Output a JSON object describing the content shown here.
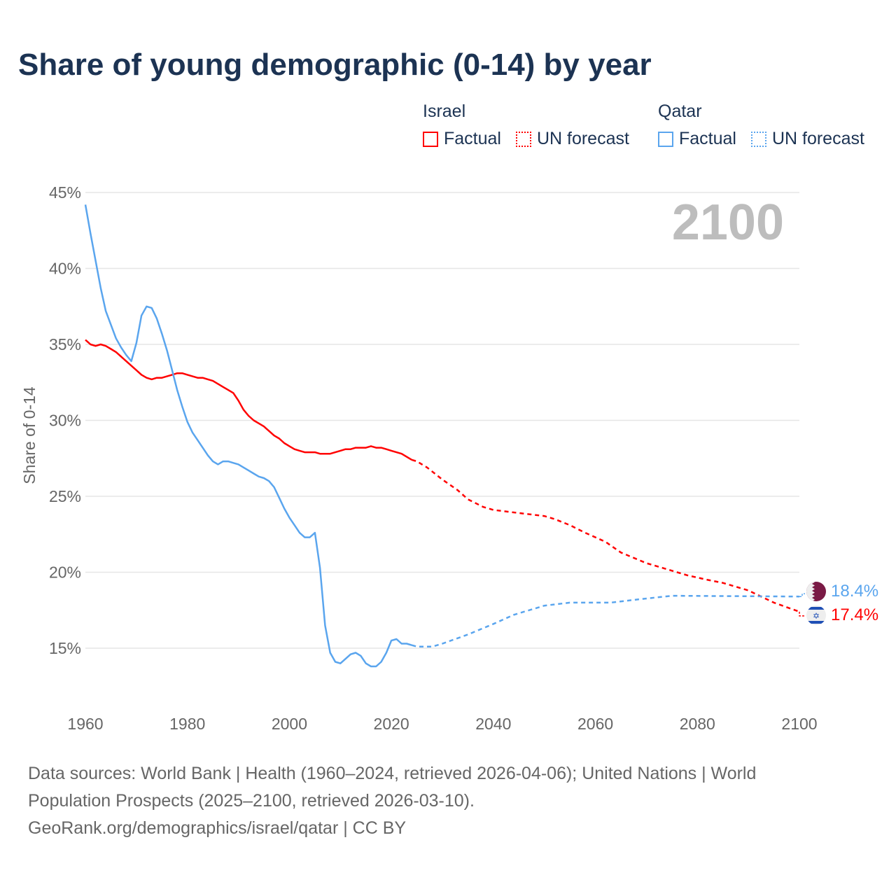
{
  "title": "Share of young demographic (0-14) by year",
  "legend": {
    "israel": {
      "name": "Israel",
      "factual": "Factual",
      "forecast": "UN forecast",
      "color": "#ff0000"
    },
    "qatar": {
      "name": "Qatar",
      "factual": "Factual",
      "forecast": "UN forecast",
      "color": "#5aa5ee"
    }
  },
  "year_label": "2100",
  "end_labels": {
    "qatar": "18.4%",
    "israel": "17.4%"
  },
  "source_lines": [
    "Data sources: World Bank | Health (1960–2024, retrieved 2026-04-06); United Nations | World",
    "Population Prospects (2025–2100, retrieved 2026-03-10).",
    "GeoRank.org/demographics/israel/qatar | CC BY"
  ],
  "chart_data": {
    "type": "line",
    "ylabel": "Share of 0-14",
    "xlim": [
      1960,
      2100
    ],
    "ylim": [
      12,
      45.5
    ],
    "xticks": [
      1960,
      1980,
      2000,
      2020,
      2040,
      2060,
      2080,
      2100
    ],
    "yticks": [
      15,
      20,
      25,
      30,
      35,
      40,
      45
    ],
    "ytick_labels": [
      "15%",
      "20%",
      "25%",
      "30%",
      "35%",
      "40%",
      "45%"
    ],
    "grid": true,
    "series": [
      {
        "name": "Israel Factual",
        "color": "#ff0000",
        "dashed": false,
        "x": [
          1960,
          1961,
          1962,
          1963,
          1964,
          1965,
          1966,
          1967,
          1968,
          1969,
          1970,
          1971,
          1972,
          1973,
          1974,
          1975,
          1976,
          1977,
          1978,
          1979,
          1980,
          1981,
          1982,
          1983,
          1984,
          1985,
          1986,
          1987,
          1988,
          1989,
          1990,
          1991,
          1992,
          1993,
          1994,
          1995,
          1996,
          1997,
          1998,
          1999,
          2000,
          2001,
          2002,
          2003,
          2004,
          2005,
          2006,
          2007,
          2008,
          2009,
          2010,
          2011,
          2012,
          2013,
          2014,
          2015,
          2016,
          2017,
          2018,
          2019,
          2020,
          2021,
          2022,
          2023,
          2024
        ],
        "y": [
          35.3,
          35.0,
          34.9,
          35.0,
          34.9,
          34.7,
          34.5,
          34.2,
          33.9,
          33.6,
          33.3,
          33.0,
          32.8,
          32.7,
          32.8,
          32.8,
          32.9,
          33.0,
          33.1,
          33.1,
          33.0,
          32.9,
          32.8,
          32.8,
          32.7,
          32.6,
          32.4,
          32.2,
          32.0,
          31.8,
          31.3,
          30.7,
          30.3,
          30.0,
          29.8,
          29.6,
          29.3,
          29.0,
          28.8,
          28.5,
          28.3,
          28.1,
          28.0,
          27.9,
          27.9,
          27.9,
          27.8,
          27.8,
          27.8,
          27.9,
          28.0,
          28.1,
          28.1,
          28.2,
          28.2,
          28.2,
          28.3,
          28.2,
          28.2,
          28.1,
          28.0,
          27.9,
          27.8,
          27.6,
          27.4
        ]
      },
      {
        "name": "Israel UN forecast",
        "color": "#ff0000",
        "dashed": true,
        "x": [
          2024,
          2025,
          2027,
          2030,
          2033,
          2035,
          2038,
          2040,
          2045,
          2050,
          2052,
          2055,
          2058,
          2062,
          2065,
          2070,
          2075,
          2078,
          2082,
          2085,
          2090,
          2095,
          2100
        ],
        "y": [
          27.4,
          27.3,
          26.9,
          26.1,
          25.4,
          24.8,
          24.3,
          24.1,
          23.9,
          23.7,
          23.5,
          23.1,
          22.6,
          22.0,
          21.3,
          20.6,
          20.1,
          19.8,
          19.5,
          19.3,
          18.8,
          18.0,
          17.4
        ]
      },
      {
        "name": "Qatar Factual",
        "color": "#5aa5ee",
        "dashed": false,
        "x": [
          1960,
          1961,
          1962,
          1963,
          1964,
          1965,
          1966,
          1967,
          1968,
          1969,
          1970,
          1971,
          1972,
          1973,
          1974,
          1975,
          1976,
          1977,
          1978,
          1979,
          1980,
          1981,
          1982,
          1983,
          1984,
          1985,
          1986,
          1987,
          1988,
          1989,
          1990,
          1991,
          1992,
          1993,
          1994,
          1995,
          1996,
          1997,
          1998,
          1999,
          2000,
          2001,
          2002,
          2003,
          2004,
          2005,
          2006,
          2007,
          2008,
          2009,
          2010,
          2011,
          2012,
          2013,
          2014,
          2015,
          2016,
          2017,
          2018,
          2019,
          2020,
          2021,
          2022,
          2023,
          2024
        ],
        "y": [
          44.2,
          42.3,
          40.5,
          38.7,
          37.2,
          36.3,
          35.4,
          34.8,
          34.3,
          33.9,
          35.1,
          36.9,
          37.5,
          37.4,
          36.7,
          35.7,
          34.6,
          33.3,
          32.0,
          30.9,
          29.9,
          29.2,
          28.7,
          28.2,
          27.7,
          27.3,
          27.1,
          27.3,
          27.3,
          27.2,
          27.1,
          26.9,
          26.7,
          26.5,
          26.3,
          26.2,
          26.0,
          25.6,
          24.9,
          24.2,
          23.6,
          23.1,
          22.6,
          22.3,
          22.3,
          22.6,
          20.3,
          16.5,
          14.7,
          14.1,
          14.0,
          14.3,
          14.6,
          14.7,
          14.5,
          14.0,
          13.8,
          13.8,
          14.1,
          14.7,
          15.5,
          15.6,
          15.3,
          15.3,
          15.2
        ]
      },
      {
        "name": "Qatar UN forecast",
        "color": "#5aa5ee",
        "dashed": true,
        "x": [
          2024,
          2025,
          2028,
          2030,
          2035,
          2040,
          2044,
          2050,
          2055,
          2063,
          2068,
          2075,
          2100
        ],
        "y": [
          15.2,
          15.1,
          15.1,
          15.3,
          15.9,
          16.6,
          17.2,
          17.8,
          18.0,
          18.0,
          18.2,
          18.45,
          18.4
        ]
      }
    ]
  }
}
